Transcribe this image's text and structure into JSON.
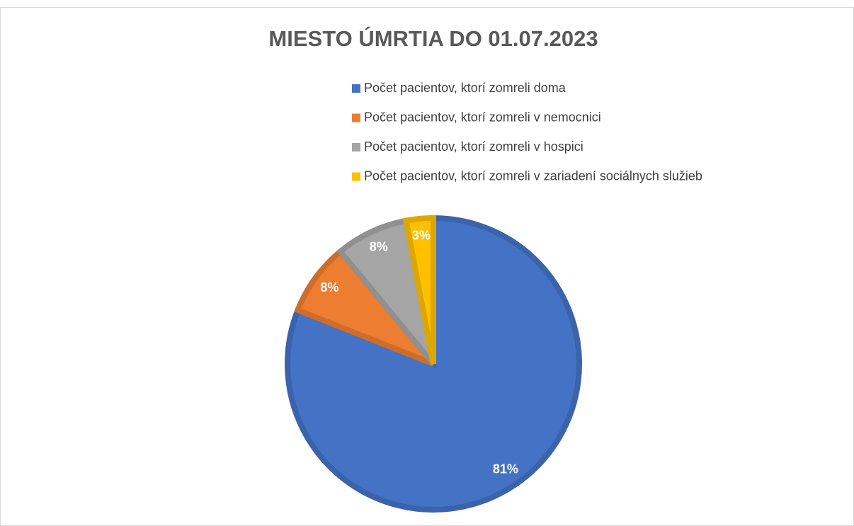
{
  "chart_data": {
    "type": "pie",
    "title": "MIESTO ÚMRTIA DO 01.07.2023",
    "categories": [
      "Počet pacientov, ktorí zomreli doma",
      "Počet pacientov, ktorí zomreli v nemocnici",
      "Počet pacientov, ktorí zomreli v hospici",
      "Počet pacientov, ktorí zomreli v zariadení sociálnych služieb"
    ],
    "values": [
      81,
      8,
      8,
      3
    ],
    "value_labels": [
      "81%",
      "8%",
      "8%",
      "3%"
    ],
    "colors": [
      "#4472c4",
      "#ed7d31",
      "#a5a5a5",
      "#ffc000"
    ],
    "legend": "top"
  }
}
